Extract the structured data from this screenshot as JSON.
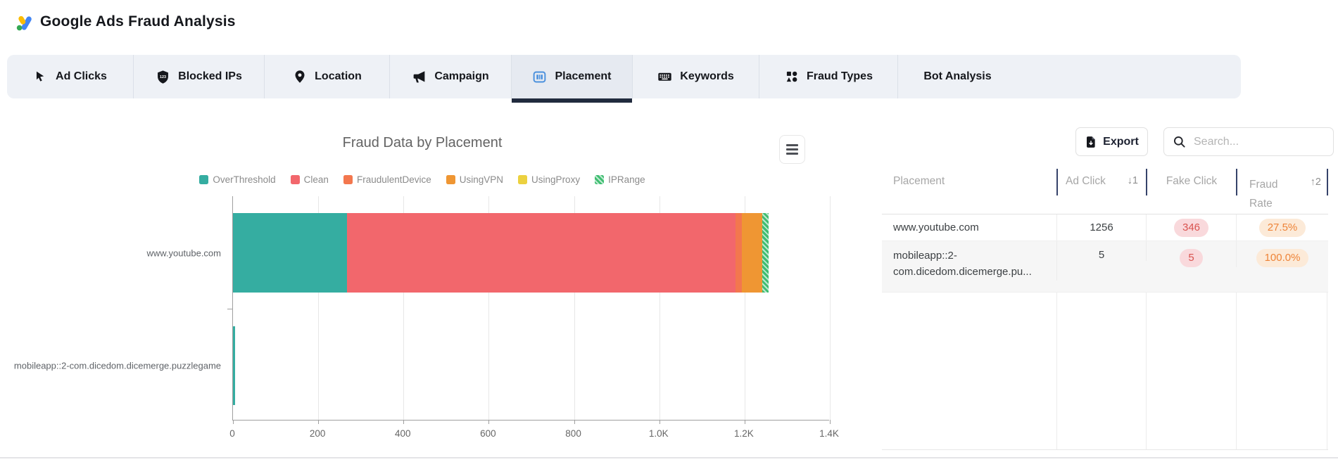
{
  "header": {
    "title": "Google Ads Fraud Analysis"
  },
  "tabs": [
    {
      "label": "Ad Clicks",
      "icon": "cursor-icon",
      "active": false
    },
    {
      "label": "Blocked IPs",
      "icon": "shield-123-icon",
      "active": false
    },
    {
      "label": "Location",
      "icon": "map-pin-icon",
      "active": false
    },
    {
      "label": "Campaign",
      "icon": "megaphone-icon",
      "active": false
    },
    {
      "label": "Placement",
      "icon": "placement-icon",
      "active": true
    },
    {
      "label": "Keywords",
      "icon": "keyboard-icon",
      "active": false
    },
    {
      "label": "Fraud Types",
      "icon": "shapes-icon",
      "active": false
    },
    {
      "label": "Bot Analysis",
      "icon": null,
      "active": false
    }
  ],
  "toolbar": {
    "export_label": "Export",
    "export_icon": "file-download-icon",
    "search_icon": "search-icon",
    "search_placeholder": "Search...",
    "search_value": "",
    "chart_menu_icon": "hamburger-menu-icon"
  },
  "chart_data": {
    "type": "bar",
    "orientation": "horizontal",
    "stacked": true,
    "title": "Fraud Data by Placement",
    "categories": [
      "www.youtube.com",
      "mobileapp::2-com.dicedom.dicemerge.puzzlegame"
    ],
    "series": [
      {
        "name": "OverThreshold",
        "color": "#35ada1",
        "values": [
          268,
          5
        ],
        "hatched": false
      },
      {
        "name": "Clean",
        "color": "#f2676c",
        "values": [
          910,
          0
        ],
        "hatched": false
      },
      {
        "name": "FraudulentDevice",
        "color": "#f3774e",
        "values": [
          15,
          0
        ],
        "hatched": false
      },
      {
        "name": "UsingVPN",
        "color": "#ef9633",
        "values": [
          48,
          0
        ],
        "hatched": false
      },
      {
        "name": "UsingProxy",
        "color": "#ecd13f",
        "values": [
          0,
          0
        ],
        "hatched": false
      },
      {
        "name": "IPRange",
        "color": "#3fbd70",
        "values": [
          15,
          0
        ],
        "hatched": true
      }
    ],
    "xlim": [
      0,
      1400
    ],
    "x_ticks": [
      "0",
      "200",
      "400",
      "600",
      "800",
      "1.0K",
      "1.2K",
      "1.4K"
    ],
    "grid": true,
    "legend_position": "top"
  },
  "table": {
    "columns": [
      "Placement",
      "Ad Click",
      "Fake Click",
      "Fraud Rate"
    ],
    "sort": {
      "ad_click": "↓1",
      "fraud_rate": "↑2"
    },
    "rows": [
      {
        "placement": "www.youtube.com",
        "ad_click": "1256",
        "fake_click": "346",
        "fraud_rate": "27.5%"
      },
      {
        "placement": "mobileapp::2-com.dicedom.dicemerge.pu...",
        "ad_click": "5",
        "fake_click": "5",
        "fraud_rate": "100.0%"
      }
    ]
  },
  "colors": {
    "tabbar_bg": "#eef1f6",
    "active_tab_bg": "#e6eaf1",
    "active_tab_underline": "#212b3e",
    "fake_click_badge_bg": "#f9d9dc",
    "fake_click_badge_text": "#d9534f",
    "fraud_rate_badge_bg": "#fcead8",
    "fraud_rate_badge_text": "#ee8438",
    "logo_blue": "#4285f4",
    "logo_yellow": "#fbbc04",
    "logo_green": "#34a853",
    "placement_icon_blue": "#4a90dd"
  }
}
